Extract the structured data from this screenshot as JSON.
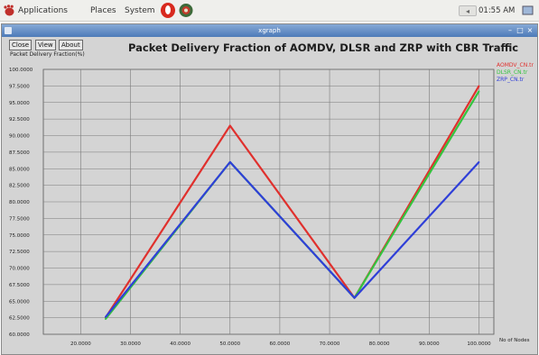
{
  "panel": {
    "applications": "Applications",
    "places": "Places",
    "system": "System",
    "clock": "01:55 AM"
  },
  "window": {
    "title": "xgraph"
  },
  "toolbar": {
    "close_label": "Close",
    "view_label": "View",
    "about_label": "About"
  },
  "chart_data": {
    "type": "line",
    "title": "Packet Delivery Fraction of AOMDV, DLSR and ZRP with CBR Traffic",
    "ylabel": "Packet Delivery Fraction(%)",
    "xlabel": "No of Nodes",
    "x": [
      25,
      50,
      75,
      100
    ],
    "xlim": [
      12.5,
      103
    ],
    "ylim": [
      60,
      100
    ],
    "x_ticks": [
      20,
      30,
      40,
      50,
      60,
      70,
      80,
      90,
      100
    ],
    "x_tick_labels": [
      "20.0000",
      "30.0000",
      "40.0000",
      "50.0000",
      "60.0000",
      "70.0000",
      "80.0000",
      "90.0000",
      "100.0000"
    ],
    "y_ticks": [
      60,
      62.5,
      65,
      67.5,
      70,
      72.5,
      75,
      77.5,
      80,
      82.5,
      85,
      87.5,
      90,
      92.5,
      95,
      97.5,
      100
    ],
    "y_tick_labels": [
      "60.0000",
      "62.5000",
      "65.0000",
      "67.5000",
      "70.0000",
      "72.5000",
      "75.0000",
      "77.5000",
      "80.0000",
      "82.5000",
      "85.0000",
      "87.5000",
      "90.0000",
      "92.5000",
      "95.0000",
      "97.5000",
      "100.0000"
    ],
    "grid": true,
    "legend_placement": "right-top",
    "series": [
      {
        "name": "AOMDV_CN.tr",
        "color": "#e0302d",
        "values": [
          62.5,
          91.5,
          65.5,
          97.5
        ]
      },
      {
        "name": "DLSR_CN.tr",
        "color": "#33c43f",
        "values": [
          62.3,
          86.0,
          65.5,
          96.7
        ]
      },
      {
        "name": "ZRP_CN.tr",
        "color": "#2f3fd8",
        "values": [
          62.6,
          86.0,
          65.5,
          86.0
        ]
      }
    ]
  }
}
